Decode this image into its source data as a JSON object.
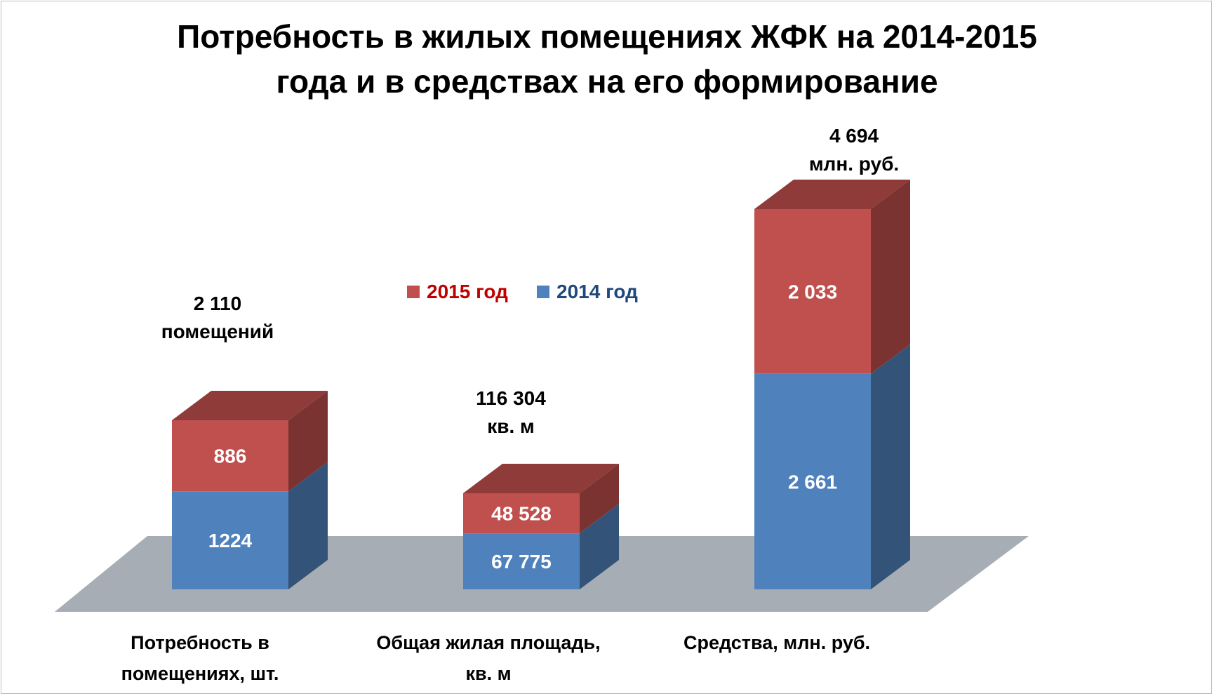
{
  "chart_data": {
    "type": "bar",
    "stacked": true,
    "three_d": true,
    "title_lines": [
      "Потребность в жилых помещениях ЖФК на 2014-2015",
      "года и в средствах на его формирование"
    ],
    "categories": [
      {
        "label_lines": [
          "Потребность в",
          "помещениях, шт."
        ]
      },
      {
        "label_lines": [
          "Общая жилая площадь,",
          "кв. м"
        ]
      },
      {
        "label_lines": [
          "Средства, млн. руб."
        ]
      }
    ],
    "series": [
      {
        "name": "2014 год",
        "color": "#4f81bd",
        "values": [
          1224,
          67775,
          2661
        ],
        "value_labels": [
          "1224",
          "67 775",
          "2 661"
        ]
      },
      {
        "name": "2015 год",
        "color": "#c0504d",
        "values": [
          886,
          48528,
          2033
        ],
        "value_labels": [
          "886",
          "48 528",
          "2 033"
        ]
      }
    ],
    "totals": [
      {
        "value": 2110,
        "label_lines": [
          "2 110",
          "помещений"
        ]
      },
      {
        "value": 116304,
        "label_lines": [
          "116 304",
          "кв. м"
        ]
      },
      {
        "value": 4694,
        "label_lines": [
          "4 694",
          "млн. руб."
        ]
      }
    ],
    "legend": {
      "placement": "top-center",
      "order": [
        "2015 год",
        "2014 год"
      ]
    },
    "floor_color": "#a6adb4",
    "legend_text_colors": {
      "2015 год": "#c00000",
      "2014 год": "#1f497d"
    }
  }
}
